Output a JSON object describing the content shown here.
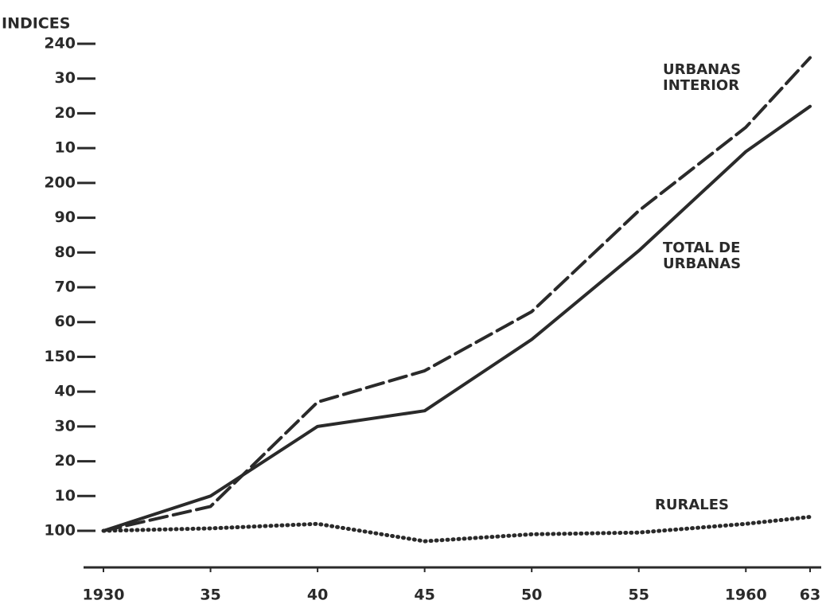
{
  "chart_data": {
    "type": "line",
    "y_label": "INDICES",
    "x": [
      1930,
      1935,
      1940,
      1945,
      1950,
      1955,
      1960,
      1963
    ],
    "series": [
      {
        "name": "URBANAS INTERIOR",
        "color": "#2a2a2a",
        "style": "dashed",
        "values": [
          100,
          107,
          137,
          146,
          163,
          192,
          216,
          236
        ]
      },
      {
        "name": "TOTAL DE URBANAS",
        "color": "#2a2a2a",
        "style": "solid",
        "values": [
          100,
          110,
          130,
          134.5,
          155,
          180.5,
          209,
          222
        ]
      },
      {
        "name": "RURALES",
        "color": "#2a2a2a",
        "style": "dotted",
        "values": [
          100,
          100.7,
          102,
          97,
          99,
          99.5,
          102,
          104
        ]
      }
    ],
    "xlim": [
      1930,
      1963
    ],
    "xticks": [
      1930,
      {
        "value": 1935,
        "label": "35"
      },
      {
        "value": 1940,
        "label": "40"
      },
      {
        "value": 1945,
        "label": "45"
      },
      {
        "value": 1950,
        "label": "50"
      },
      {
        "value": 1955,
        "label": "55"
      },
      1960,
      {
        "value": 1963,
        "label": "63"
      }
    ],
    "ylim": [
      100,
      240
    ],
    "yticks": [
      100,
      {
        "value": 110,
        "label": "10"
      },
      {
        "value": 120,
        "label": "20"
      },
      {
        "value": 130,
        "label": "30"
      },
      {
        "value": 140,
        "label": "40"
      },
      150,
      {
        "value": 160,
        "label": "60"
      },
      {
        "value": 170,
        "label": "70"
      },
      {
        "value": 180,
        "label": "80"
      },
      {
        "value": 190,
        "label": "90"
      },
      200,
      {
        "value": 210,
        "label": "10"
      },
      {
        "value": 220,
        "label": "20"
      },
      {
        "value": 230,
        "label": "30"
      },
      240
    ]
  }
}
